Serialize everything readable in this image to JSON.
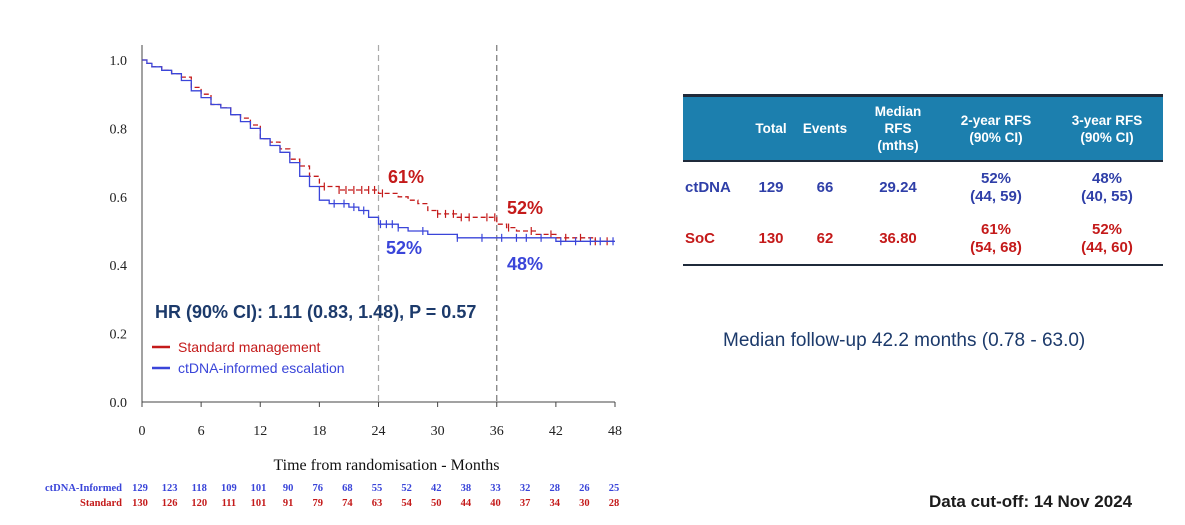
{
  "chart_data": {
    "type": "line",
    "subtype": "kaplan-meier",
    "xlabel": "Time from randomisation - Months",
    "ylabel": "",
    "xlim": [
      0,
      48
    ],
    "ylim": [
      0,
      1
    ],
    "xticks": [
      0,
      6,
      12,
      18,
      24,
      30,
      36,
      42,
      48
    ],
    "yticks": [
      0.0,
      0.2,
      0.4,
      0.6,
      0.8,
      1.0
    ],
    "ytick_labels": [
      "0.0",
      "0.2",
      "0.4",
      "0.6",
      "0.8",
      "1.0"
    ],
    "reference_lines_x": [
      24,
      36
    ],
    "series": [
      {
        "name": "Standard management",
        "color": "#c41a1a",
        "dash": "dashed",
        "x": [
          0,
          0.5,
          1,
          2,
          3,
          4,
          5,
          6,
          7,
          8,
          9,
          10,
          11,
          12,
          13,
          14,
          15,
          16,
          17,
          18,
          19,
          20,
          21,
          22,
          23,
          24,
          25,
          26,
          27,
          28,
          29,
          30,
          31,
          32,
          33,
          34,
          35,
          36,
          37,
          38,
          40,
          42,
          44,
          46,
          48
        ],
        "y": [
          1.0,
          0.99,
          0.98,
          0.97,
          0.96,
          0.95,
          0.92,
          0.9,
          0.87,
          0.86,
          0.84,
          0.83,
          0.81,
          0.77,
          0.76,
          0.74,
          0.71,
          0.69,
          0.66,
          0.63,
          0.63,
          0.62,
          0.62,
          0.62,
          0.62,
          0.61,
          0.61,
          0.6,
          0.59,
          0.58,
          0.56,
          0.55,
          0.55,
          0.54,
          0.54,
          0.54,
          0.54,
          0.52,
          0.51,
          0.5,
          0.49,
          0.48,
          0.48,
          0.47,
          0.47
        ],
        "censor_x": [
          18.5,
          20,
          20.7,
          21.5,
          22.3,
          23,
          23.6,
          24.4,
          30,
          30.8,
          31.6,
          32.4,
          33.2,
          35,
          35.8,
          37.2,
          39.5,
          41.5,
          43,
          44.5,
          46,
          47.2
        ]
      },
      {
        "name": "ctDNA-informed escalation",
        "color": "#3a45d9",
        "dash": "solid",
        "x": [
          0,
          0.5,
          1,
          2,
          3,
          4,
          5,
          6,
          7,
          8,
          9,
          10,
          11,
          12,
          13,
          14,
          15,
          16,
          17,
          18,
          19,
          20,
          21,
          22,
          23,
          24,
          25,
          26,
          27,
          28,
          29,
          30,
          31,
          32,
          33,
          34,
          35,
          36,
          37,
          38,
          40,
          42,
          44,
          46,
          48
        ],
        "y": [
          1.0,
          0.99,
          0.98,
          0.97,
          0.96,
          0.94,
          0.91,
          0.89,
          0.87,
          0.86,
          0.84,
          0.82,
          0.8,
          0.77,
          0.75,
          0.73,
          0.7,
          0.66,
          0.63,
          0.59,
          0.58,
          0.58,
          0.57,
          0.56,
          0.54,
          0.52,
          0.52,
          0.51,
          0.5,
          0.5,
          0.49,
          0.49,
          0.49,
          0.48,
          0.48,
          0.48,
          0.48,
          0.48,
          0.48,
          0.48,
          0.48,
          0.47,
          0.47,
          0.47,
          0.47
        ],
        "censor_x": [
          19.5,
          20.5,
          21.5,
          22.5,
          24.2,
          24.8,
          25.4,
          26,
          28.5,
          32,
          34.5,
          36.5,
          38,
          39,
          40.5,
          42.5,
          44,
          45.5,
          46.5,
          47.8
        ]
      }
    ],
    "annotations": [
      {
        "text": "61%",
        "x": 24,
        "y": 0.61,
        "color": "#c41a1a"
      },
      {
        "text": "52%",
        "x": 36,
        "y": 0.54,
        "color": "#c41a1a"
      },
      {
        "text": "52%",
        "x": 24,
        "y": 0.52,
        "color": "#3a45d9"
      },
      {
        "text": "48%",
        "x": 36,
        "y": 0.48,
        "color": "#3a45d9"
      }
    ],
    "hr_text": "HR (90% CI): 1.11 (0.83, 1.48), P = 0.57",
    "legend": [
      {
        "label": "Standard management",
        "color": "#c41a1a"
      },
      {
        "label": "ctDNA-informed escalation",
        "color": "#3a45d9"
      }
    ],
    "risk_table": {
      "rows": [
        {
          "label": "ctDNA-Informed",
          "color": "#3a45d9",
          "values": [
            "129",
            "123",
            "118",
            "109",
            "101",
            "90",
            "76",
            "68",
            "55",
            "52",
            "42",
            "38",
            "33",
            "32",
            "28",
            "26",
            "25"
          ]
        },
        {
          "label": "Standard",
          "color": "#c41a1a",
          "values": [
            "130",
            "126",
            "120",
            "111",
            "101",
            "91",
            "79",
            "74",
            "63",
            "54",
            "50",
            "44",
            "40",
            "37",
            "34",
            "30",
            "28"
          ]
        }
      ]
    }
  },
  "table": {
    "headers": [
      "",
      "Total",
      "Events",
      "Median RFS (mths)",
      "2-year RFS (90% CI)",
      "3-year RFS (90% CI)"
    ],
    "header_lines": {
      "median": [
        "Median",
        "RFS",
        "(mths)"
      ],
      "two_year": [
        "2-year RFS",
        "(90% CI)"
      ],
      "three_year": [
        "3-year RFS",
        "(90% CI)"
      ]
    },
    "rows": [
      {
        "label": "ctDNA",
        "total": "129",
        "events": "66",
        "median": "29.24",
        "two_year": "52%",
        "two_year_ci": "(44, 59)",
        "three_year": "48%",
        "three_year_ci": "(40, 55)"
      },
      {
        "label": "SoC",
        "total": "130",
        "events": "62",
        "median": "36.80",
        "two_year": "61%",
        "two_year_ci": "(54, 68)",
        "three_year": "52%",
        "three_year_ci": "(44, 60)"
      }
    ]
  },
  "followup": "Median follow-up 42.2 months (0.78 - 63.0)",
  "cutoff": "Data cut-off: 14 Nov 2024",
  "colors": {
    "red": "#c41a1a",
    "blue": "#3a45d9",
    "header": "#1c7fae",
    "navy": "#1c3a6b"
  }
}
